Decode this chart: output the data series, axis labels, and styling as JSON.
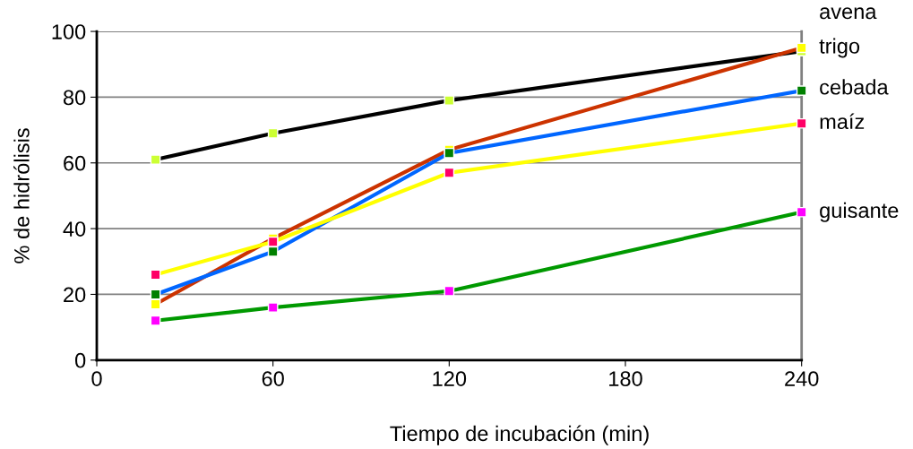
{
  "chart_data": {
    "type": "line",
    "xlabel": "Tiempo de incubación (min)",
    "ylabel": "% de hidrólisis",
    "x": [
      20,
      60,
      120,
      240
    ],
    "xlim": [
      0,
      240
    ],
    "xticks": [
      0,
      60,
      120,
      180,
      240
    ],
    "ylim": [
      0,
      100
    ],
    "yticks": [
      0,
      20,
      40,
      60,
      80,
      100
    ],
    "grid": "y",
    "marker": "square",
    "line_style": "solid",
    "series": [
      {
        "name": "avena",
        "color": "#000000",
        "colors": [
          "#ccff33",
          "#ccff33",
          "#ccff33",
          "#ccff33"
        ],
        "values": [
          61,
          69,
          79,
          94
        ]
      },
      {
        "name": "trigo",
        "color": "#cc3300",
        "colors": [
          "#ffff00",
          "#ffff00",
          "#ffff00",
          "#ffff00"
        ],
        "values": [
          17,
          37,
          64,
          95
        ]
      },
      {
        "name": "cebada",
        "color": "#0066ff",
        "colors": [
          "#008000",
          "#008000",
          "#008000",
          "#008000"
        ],
        "values": [
          20,
          33,
          63,
          82
        ]
      },
      {
        "name": "maíz",
        "color": "#ffff00",
        "colors": [
          "#ff0066",
          "#ff0066",
          "#ff0066",
          "#ff0066"
        ],
        "values": [
          26,
          36,
          57,
          72
        ]
      },
      {
        "name": "guisante",
        "color": "#009900",
        "colors": [
          "#ff00ff",
          "#ff00ff",
          "#ff00ff",
          "#ff00ff"
        ],
        "values": [
          12,
          16,
          21,
          45
        ]
      }
    ]
  }
}
